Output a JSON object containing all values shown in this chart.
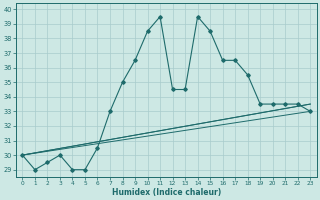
{
  "xlabel": "Humidex (Indice chaleur)",
  "bg_color": "#cde8e4",
  "grid_color": "#a8cccc",
  "line_color": "#1e6b6b",
  "xlim_min": -0.5,
  "xlim_max": 23.5,
  "ylim_min": 28.5,
  "ylim_max": 40.4,
  "xticks": [
    0,
    1,
    2,
    3,
    4,
    5,
    6,
    7,
    8,
    9,
    10,
    11,
    12,
    13,
    14,
    15,
    16,
    17,
    18,
    19,
    20,
    21,
    22,
    23
  ],
  "yticks": [
    29,
    30,
    31,
    32,
    33,
    34,
    35,
    36,
    37,
    38,
    39,
    40
  ],
  "curve1_x": [
    0,
    1,
    2,
    3,
    4,
    5,
    6,
    7,
    8,
    9,
    10,
    11,
    12,
    13,
    14,
    15,
    16,
    17,
    18,
    19,
    20,
    21,
    22,
    23
  ],
  "curve1_y": [
    30.0,
    29.0,
    29.5,
    30.0,
    29.0,
    29.0,
    30.5,
    33.0,
    35.0,
    36.5,
    38.5,
    39.5,
    34.5,
    34.5,
    39.5,
    38.5,
    36.5,
    36.5,
    35.5,
    33.5,
    33.5,
    33.5,
    33.5,
    33.0
  ],
  "curve2_x": [
    0,
    23
  ],
  "curve2_y": [
    30.0,
    33.0
  ],
  "curve3_x": [
    0,
    23
  ],
  "curve3_y": [
    30.0,
    33.5
  ],
  "curve4_x": [
    0,
    23
  ],
  "curve4_y": [
    30.0,
    33.5
  ]
}
